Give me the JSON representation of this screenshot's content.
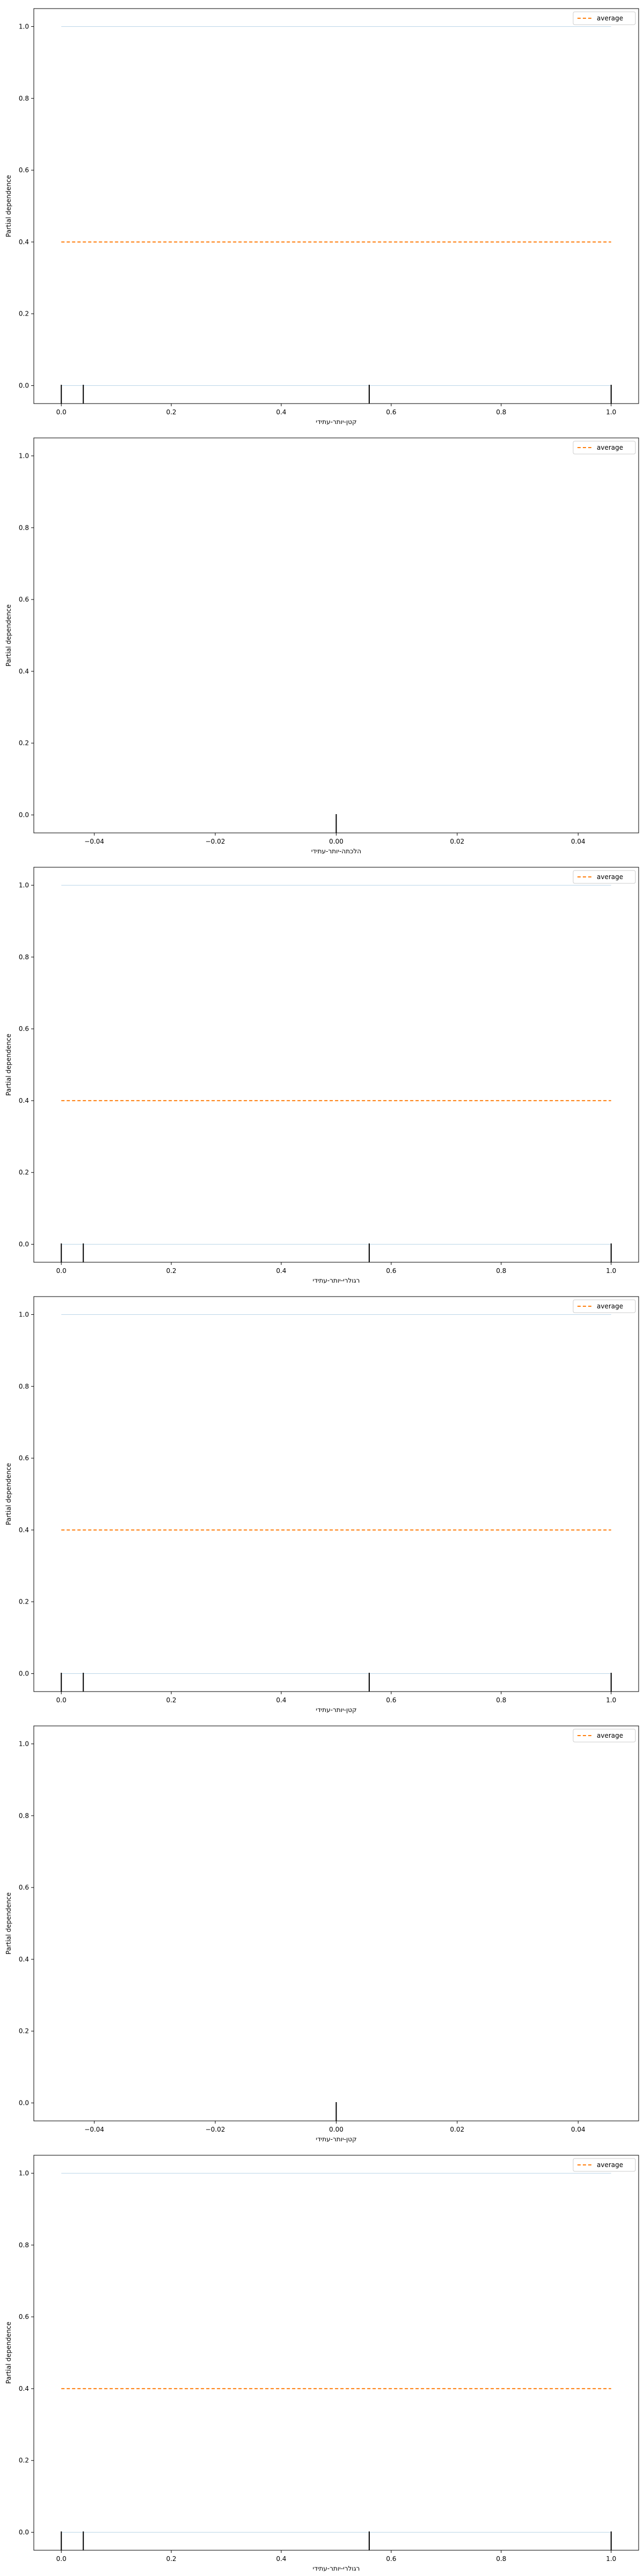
{
  "colors": {
    "ice_line": "#1f77b4",
    "average_line": "#ff7f0e",
    "axes": "#000000",
    "rug": "#000000"
  },
  "chart_data": [
    {
      "type": "line",
      "xlabel": "קטן-יותר-עתידי",
      "ylabel": "Partial dependence",
      "xlim": [
        -0.05,
        1.05
      ],
      "ylim": [
        -0.05,
        1.05
      ],
      "xticks": [
        0.0,
        0.2,
        0.4,
        0.6,
        0.8,
        1.0
      ],
      "xtick_labels": [
        "0.0",
        "0.2",
        "0.4",
        "0.6",
        "0.8",
        "1.0"
      ],
      "yticks": [
        0.0,
        0.2,
        0.4,
        0.6,
        0.8,
        1.0
      ],
      "ytick_labels": [
        "0.0",
        "0.2",
        "0.4",
        "0.6",
        "0.8",
        "1.0"
      ],
      "legend": {
        "placement": "top-right",
        "entries": [
          "average"
        ]
      },
      "grid": false,
      "series": [
        {
          "kind": "ice",
          "x": [
            0.0,
            1.0
          ],
          "y": [
            1.0,
            1.0
          ]
        },
        {
          "kind": "ice",
          "x": [
            0.0,
            1.0
          ],
          "y": [
            0.0,
            0.0
          ]
        },
        {
          "name": "average",
          "kind": "average",
          "x": [
            0.0,
            1.0
          ],
          "y": [
            0.4,
            0.4
          ]
        }
      ],
      "rug": [
        0.0,
        0.04,
        0.56,
        1.0
      ]
    },
    {
      "type": "line",
      "xlabel": "הלכתה-יותר-עתידי",
      "ylabel": "Partial dependence",
      "xlim": [
        -0.05,
        0.05
      ],
      "ylim": [
        -0.05,
        1.05
      ],
      "xticks": [
        -0.04,
        -0.02,
        0.0,
        0.02,
        0.04
      ],
      "xtick_labels": [
        "−0.04",
        "−0.02",
        "0.00",
        "0.02",
        "0.04"
      ],
      "yticks": [
        0.0,
        0.2,
        0.4,
        0.6,
        0.8,
        1.0
      ],
      "ytick_labels": [
        "0.0",
        "0.2",
        "0.4",
        "0.6",
        "0.8",
        "1.0"
      ],
      "legend": {
        "placement": "top-right",
        "entries": [
          "average"
        ]
      },
      "grid": false,
      "series": [],
      "rug": [
        0.0
      ]
    },
    {
      "type": "line",
      "xlabel": "רגולרי-יותר-עתידי",
      "ylabel": "Partial dependence",
      "xlim": [
        -0.05,
        1.05
      ],
      "ylim": [
        -0.05,
        1.05
      ],
      "xticks": [
        0.0,
        0.2,
        0.4,
        0.6,
        0.8,
        1.0
      ],
      "xtick_labels": [
        "0.0",
        "0.2",
        "0.4",
        "0.6",
        "0.8",
        "1.0"
      ],
      "yticks": [
        0.0,
        0.2,
        0.4,
        0.6,
        0.8,
        1.0
      ],
      "ytick_labels": [
        "0.0",
        "0.2",
        "0.4",
        "0.6",
        "0.8",
        "1.0"
      ],
      "legend": {
        "placement": "top-right",
        "entries": [
          "average"
        ]
      },
      "grid": false,
      "series": [
        {
          "kind": "ice",
          "x": [
            0.0,
            1.0
          ],
          "y": [
            1.0,
            1.0
          ]
        },
        {
          "kind": "ice",
          "x": [
            0.0,
            1.0
          ],
          "y": [
            0.0,
            0.0
          ]
        },
        {
          "name": "average",
          "kind": "average",
          "x": [
            0.0,
            1.0
          ],
          "y": [
            0.4,
            0.4
          ]
        }
      ],
      "rug": [
        0.0,
        0.04,
        0.56,
        1.0
      ]
    },
    {
      "type": "line",
      "xlabel": "קטן-יותר-עתידי",
      "ylabel": "Partial dependence",
      "xlim": [
        -0.05,
        1.05
      ],
      "ylim": [
        -0.05,
        1.05
      ],
      "xticks": [
        0.0,
        0.2,
        0.4,
        0.6,
        0.8,
        1.0
      ],
      "xtick_labels": [
        "0.0",
        "0.2",
        "0.4",
        "0.6",
        "0.8",
        "1.0"
      ],
      "yticks": [
        0.0,
        0.2,
        0.4,
        0.6,
        0.8,
        1.0
      ],
      "ytick_labels": [
        "0.0",
        "0.2",
        "0.4",
        "0.6",
        "0.8",
        "1.0"
      ],
      "legend": {
        "placement": "top-right",
        "entries": [
          "average"
        ]
      },
      "grid": false,
      "series": [
        {
          "kind": "ice",
          "x": [
            0.0,
            1.0
          ],
          "y": [
            1.0,
            1.0
          ]
        },
        {
          "kind": "ice",
          "x": [
            0.0,
            1.0
          ],
          "y": [
            0.0,
            0.0
          ]
        },
        {
          "name": "average",
          "kind": "average",
          "x": [
            0.0,
            1.0
          ],
          "y": [
            0.4,
            0.4
          ]
        }
      ],
      "rug": [
        0.0,
        0.04,
        0.56,
        1.0
      ]
    },
    {
      "type": "line",
      "xlabel": "קטן-יותר-עתידי",
      "ylabel": "Partial dependence",
      "xlim": [
        -0.05,
        0.05
      ],
      "ylim": [
        -0.05,
        1.05
      ],
      "xticks": [
        -0.04,
        -0.02,
        0.0,
        0.02,
        0.04
      ],
      "xtick_labels": [
        "−0.04",
        "−0.02",
        "0.00",
        "0.02",
        "0.04"
      ],
      "yticks": [
        0.0,
        0.2,
        0.4,
        0.6,
        0.8,
        1.0
      ],
      "ytick_labels": [
        "0.0",
        "0.2",
        "0.4",
        "0.6",
        "0.8",
        "1.0"
      ],
      "legend": {
        "placement": "top-right",
        "entries": [
          "average"
        ]
      },
      "grid": false,
      "series": [],
      "rug": [
        0.0
      ]
    },
    {
      "type": "line",
      "xlabel": "רגולרי-יותר-עתידי",
      "ylabel": "Partial dependence",
      "xlim": [
        -0.05,
        1.05
      ],
      "ylim": [
        -0.05,
        1.05
      ],
      "xticks": [
        0.0,
        0.2,
        0.4,
        0.6,
        0.8,
        1.0
      ],
      "xtick_labels": [
        "0.0",
        "0.2",
        "0.4",
        "0.6",
        "0.8",
        "1.0"
      ],
      "yticks": [
        0.0,
        0.2,
        0.4,
        0.6,
        0.8,
        1.0
      ],
      "ytick_labels": [
        "0.0",
        "0.2",
        "0.4",
        "0.6",
        "0.8",
        "1.0"
      ],
      "legend": {
        "placement": "top-right",
        "entries": [
          "average"
        ]
      },
      "grid": false,
      "series": [
        {
          "kind": "ice",
          "x": [
            0.0,
            1.0
          ],
          "y": [
            1.0,
            1.0
          ]
        },
        {
          "kind": "ice",
          "x": [
            0.0,
            1.0
          ],
          "y": [
            0.0,
            0.0
          ]
        },
        {
          "name": "average",
          "kind": "average",
          "x": [
            0.0,
            1.0
          ],
          "y": [
            0.4,
            0.4
          ]
        }
      ],
      "rug": [
        0.0,
        0.04,
        0.56,
        1.0
      ]
    }
  ]
}
